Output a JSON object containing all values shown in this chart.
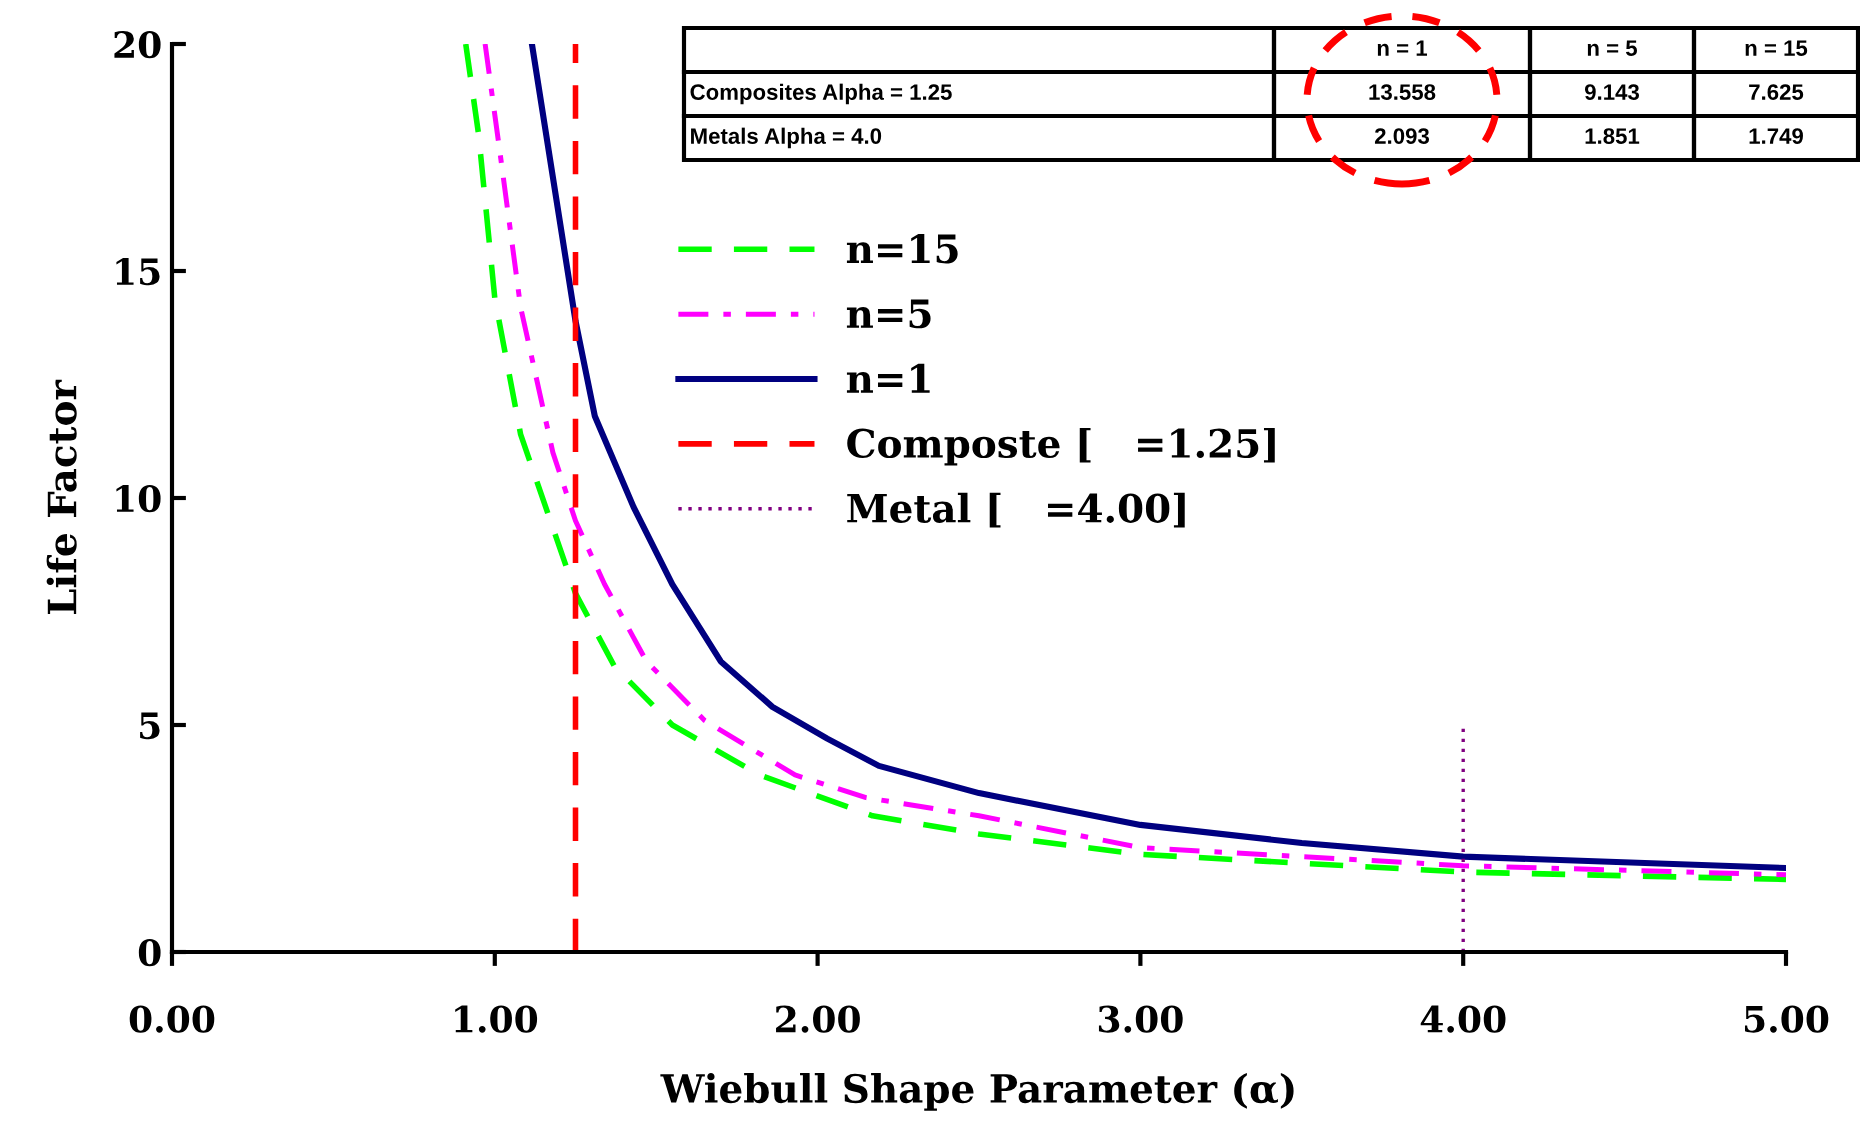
{
  "chart_data": {
    "type": "line",
    "xlabel": "Wiebull Shape Parameter (α)",
    "ylabel": "Life Factor",
    "xlim": [
      0,
      5
    ],
    "ylim": [
      0,
      20
    ],
    "xticks": [
      {
        "value": 0,
        "label": "0.00"
      },
      {
        "value": 1,
        "label": "1.00"
      },
      {
        "value": 2,
        "label": "2.00"
      },
      {
        "value": 3,
        "label": "3.00"
      },
      {
        "value": 4,
        "label": "4.00"
      },
      {
        "value": 5,
        "label": "5.00"
      }
    ],
    "yticks": [
      0,
      5,
      10,
      15,
      20
    ],
    "grid": false,
    "legend": "top",
    "marker": "none",
    "series": [
      {
        "name": "n=15",
        "color": "#00ff00",
        "line_style": "dashed",
        "x": [
          0.91,
          0.95,
          1.0,
          1.08,
          1.25,
          1.37,
          1.55,
          1.82,
          2.17,
          2.5,
          3.0,
          4.0,
          5.0
        ],
        "values": [
          20,
          18.0,
          14.4,
          11.4,
          7.9,
          6.3,
          5.0,
          3.9,
          3.0,
          2.6,
          2.15,
          1.76,
          1.6
        ]
      },
      {
        "name": "n=5",
        "color": "#ff00ff",
        "line_style": "dashdot",
        "x": [
          0.97,
          1.02,
          1.08,
          1.18,
          1.25,
          1.34,
          1.47,
          1.65,
          1.93,
          2.15,
          2.5,
          3.0,
          4.0,
          5.0
        ],
        "values": [
          20,
          17.4,
          14.2,
          11.0,
          9.5,
          8.1,
          6.4,
          5.1,
          3.9,
          3.4,
          3.0,
          2.3,
          1.9,
          1.7
        ]
      },
      {
        "name": "n=1",
        "color": "#000080",
        "line_style": "solid",
        "x": [
          1.115,
          1.25,
          1.31,
          1.43,
          1.55,
          1.7,
          1.86,
          2.03,
          2.19,
          2.5,
          3.0,
          3.5,
          4.0,
          5.0
        ],
        "values": [
          20,
          13.9,
          11.8,
          9.8,
          8.1,
          6.4,
          5.4,
          4.7,
          4.1,
          3.5,
          2.8,
          2.4,
          2.1,
          1.85
        ]
      },
      {
        "name": "Composte [   =1.25]",
        "color": "#ff0000",
        "line_style": "dashed",
        "x": [
          1.25,
          1.25
        ],
        "values": [
          0,
          20
        ]
      },
      {
        "name": "Metal [   =4.00]",
        "color": "#800080",
        "line_style": "dotted",
        "x": [
          4.0,
          4.0
        ],
        "values": [
          0,
          5
        ]
      }
    ],
    "annotations": [
      "n = 1",
      "n = 5",
      "n = 15",
      "Composites Alpha = 1.25",
      "13.558",
      "9.143",
      "7.625",
      "Metals Alpha = 4.0",
      "2.093",
      "1.851",
      "1.749"
    ]
  }
}
